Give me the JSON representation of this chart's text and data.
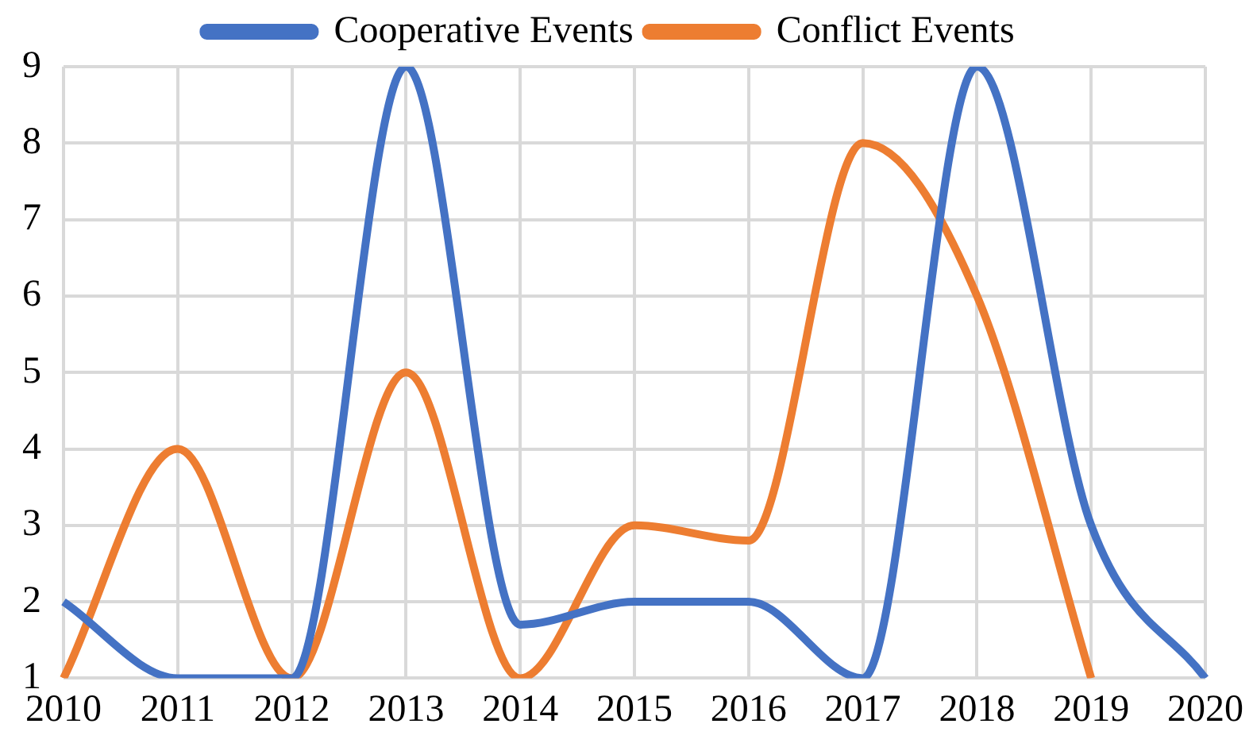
{
  "chart_data": {
    "type": "line",
    "categories": [
      "2010",
      "2011",
      "2012",
      "2013",
      "2014",
      "2015",
      "2016",
      "2017",
      "2018",
      "2019",
      "2020"
    ],
    "series": [
      {
        "name": "Cooperative Events",
        "color": "#4472c4",
        "values": [
          2,
          1,
          1,
          9,
          1.7,
          2,
          2,
          1,
          9,
          3,
          1
        ]
      },
      {
        "name": "Conflict Events",
        "color": "#ed7d31",
        "values": [
          1,
          4,
          1,
          5,
          1,
          3,
          2.8,
          8,
          6,
          1,
          null
        ]
      }
    ],
    "ylim": [
      1,
      9
    ],
    "yticks": [
      1,
      2,
      3,
      4,
      5,
      6,
      7,
      8,
      9
    ],
    "grid": true,
    "legend": "top",
    "marker": "none"
  }
}
